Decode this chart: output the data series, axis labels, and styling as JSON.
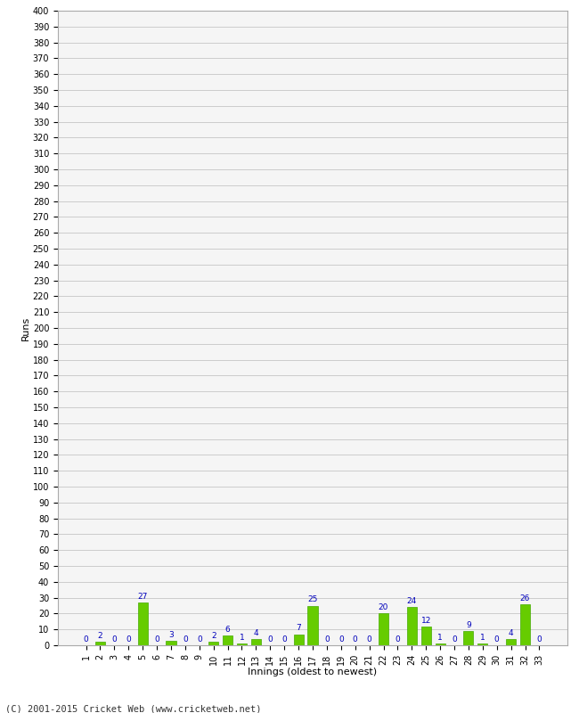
{
  "xlabel": "Innings (oldest to newest)",
  "ylabel": "Runs",
  "values": [
    0,
    2,
    0,
    0,
    27,
    0,
    3,
    0,
    0,
    2,
    6,
    1,
    4,
    0,
    0,
    7,
    25,
    0,
    0,
    0,
    0,
    20,
    0,
    24,
    12,
    1,
    0,
    9,
    1,
    0,
    4,
    26,
    0
  ],
  "categories": [
    1,
    2,
    3,
    4,
    5,
    6,
    7,
    8,
    9,
    10,
    11,
    12,
    13,
    14,
    15,
    16,
    17,
    18,
    19,
    20,
    21,
    22,
    23,
    24,
    25,
    26,
    27,
    28,
    29,
    30,
    31,
    32,
    33
  ],
  "bar_color": "#66cc00",
  "bar_edge_color": "#44aa00",
  "label_color": "#0000bb",
  "ylim": [
    0,
    400
  ],
  "background_color": "#ffffff",
  "grid_color": "#cccccc",
  "footer": "(C) 2001-2015 Cricket Web (www.cricketweb.net)",
  "axis_bg_color": "#f5f5f5"
}
